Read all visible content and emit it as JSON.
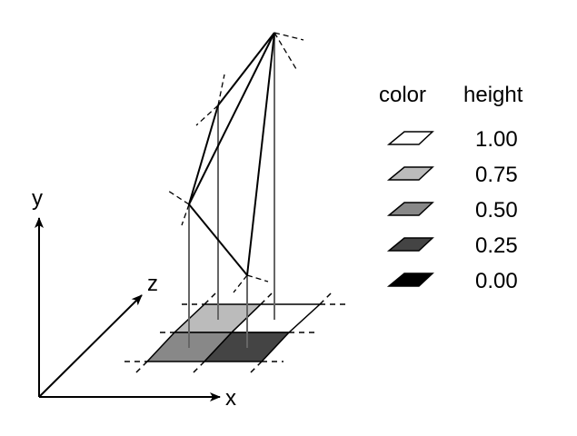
{
  "axes": {
    "x_label": "x",
    "y_label": "y",
    "z_label": "z"
  },
  "legend": {
    "color_header": "color",
    "height_header": "height",
    "items": [
      {
        "height": "1.00",
        "color": "#ffffff"
      },
      {
        "height": "0.75",
        "color": "#bbbbbb"
      },
      {
        "height": "0.50",
        "color": "#888888"
      },
      {
        "height": "0.25",
        "color": "#444444"
      },
      {
        "height": "0.00",
        "color": "#000000"
      }
    ]
  },
  "grid_cells": [
    {
      "row": "back",
      "col": "left",
      "height": 0.75,
      "color": "#bbbbbb"
    },
    {
      "row": "back",
      "col": "right",
      "height": 1.0,
      "color": "#ffffff"
    },
    {
      "row": "front",
      "col": "left",
      "height": 0.5,
      "color": "#888888"
    },
    {
      "row": "front",
      "col": "right",
      "height": 0.25,
      "color": "#444444"
    }
  ]
}
